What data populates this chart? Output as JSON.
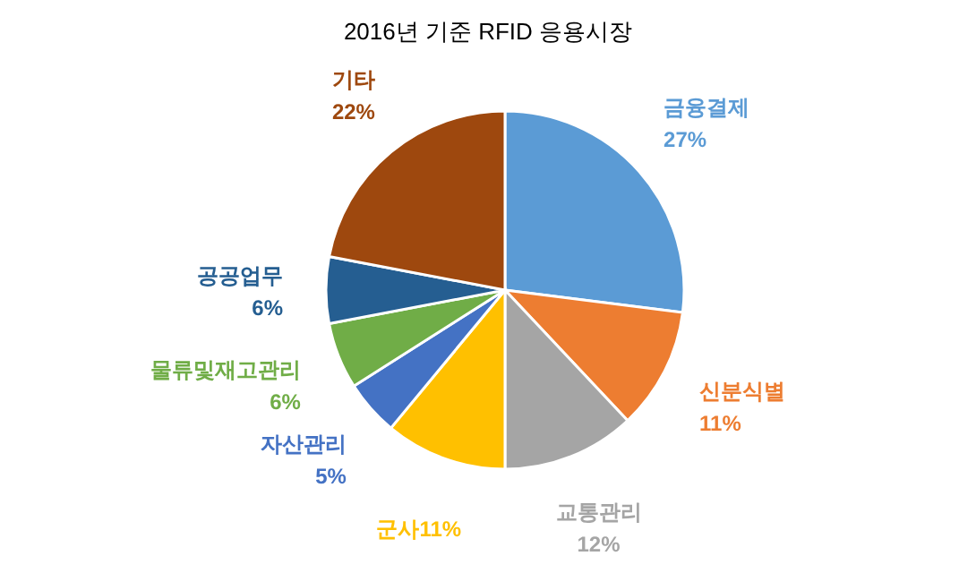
{
  "chart_data": {
    "type": "pie",
    "title": "2016년 기준 RFID 응용시장",
    "categories": [
      "금융결제",
      "신분식별",
      "교통관리",
      "군사",
      "자산관리",
      "물류및재고관리",
      "공공업무",
      "기타"
    ],
    "values": [
      27,
      11,
      12,
      11,
      5,
      6,
      6,
      22
    ],
    "colors": [
      "#5b9bd5",
      "#ed7d31",
      "#a5a5a5",
      "#ffc000",
      "#4472c4",
      "#70ad47",
      "#255e91",
      "#9e480e"
    ],
    "value_labels": [
      "27%",
      "11%",
      "12%",
      "11%",
      "5%",
      "6%",
      "6%",
      "22%"
    ]
  }
}
